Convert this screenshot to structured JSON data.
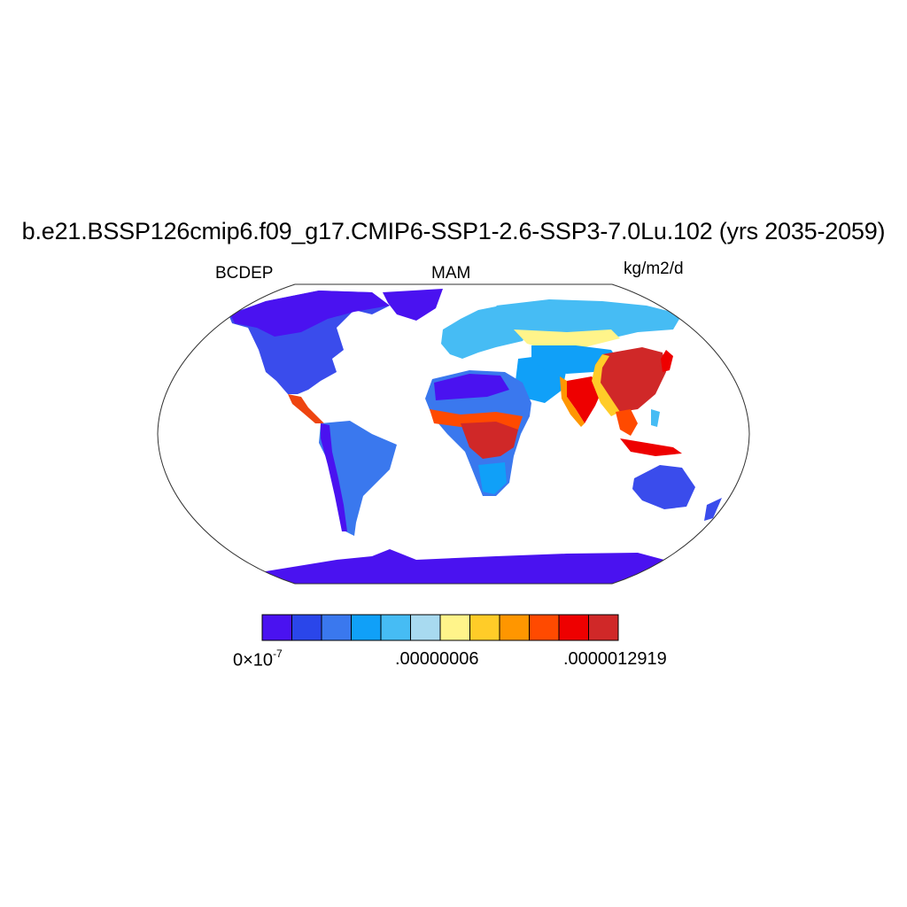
{
  "title": "b.e21.BSSP126cmip6.f09_g17.CMIP6-SSP1-2.6-SSP3-7.0Lu.102 (yrs 2035-2059)",
  "variable": "BCDEP",
  "season": "MAM",
  "units": "kg/m2/d",
  "projection": "Robinson (global)",
  "colorbar": {
    "colors": [
      "#4a12f0",
      "#2a46ea",
      "#3a78ee",
      "#10a0f8",
      "#46bcf4",
      "#a8daf0",
      "#fff48a",
      "#ffcc28",
      "#ff9600",
      "#ff4a00",
      "#ee0000",
      "#d02828"
    ],
    "labels": {
      "min_base": "0",
      "min_times": "×10",
      "min_exp": "-7",
      "mid": ".00000006",
      "max": ".0000012919"
    }
  },
  "land_color": "#4a12f0",
  "ocean_color": "#ffffff",
  "hotspots": [
    "China",
    "Central Africa",
    "India",
    "Southeast Asia",
    "Central America"
  ]
}
